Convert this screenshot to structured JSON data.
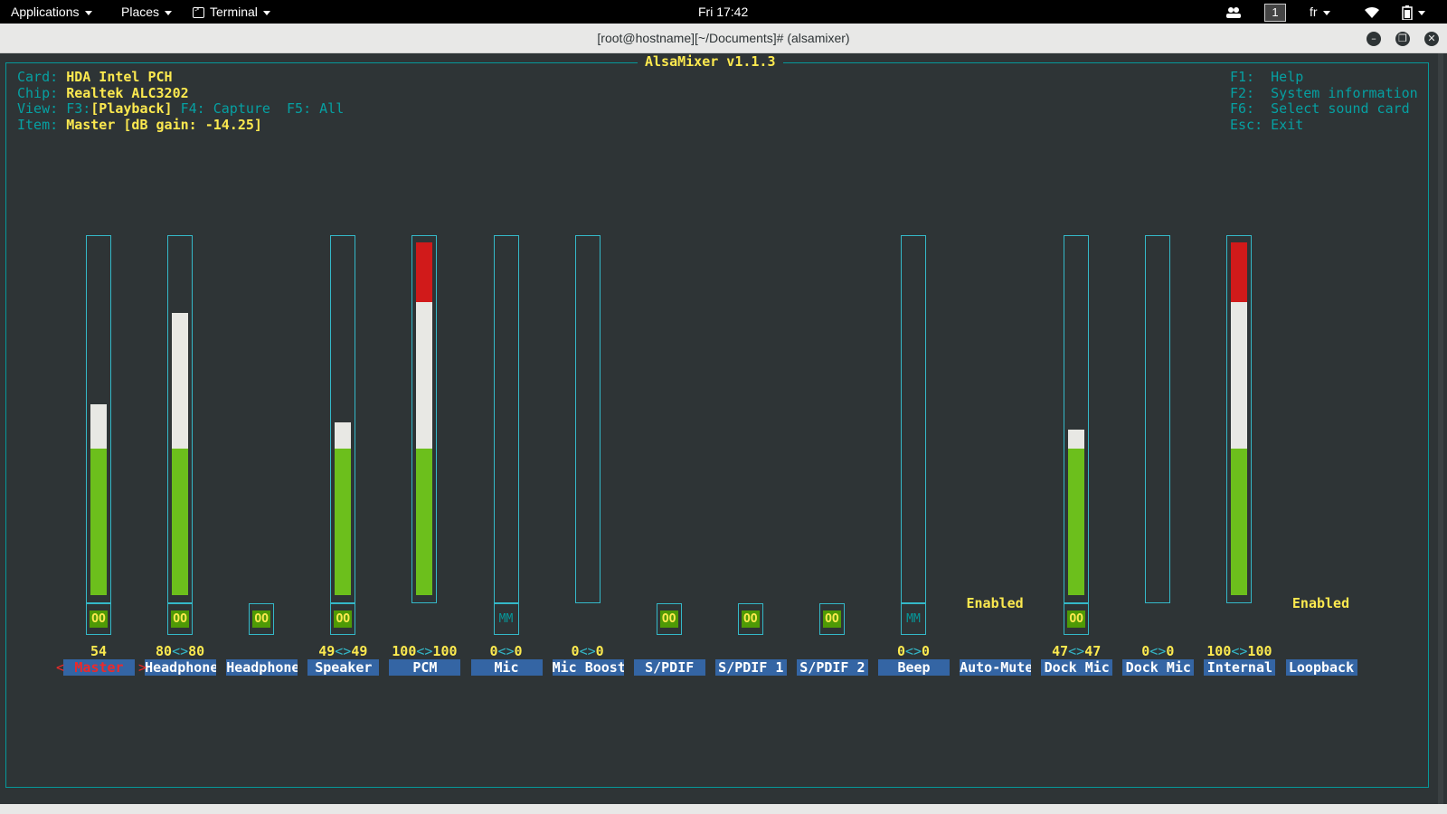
{
  "topbar": {
    "applications": "Applications",
    "places": "Places",
    "terminal": "Terminal",
    "clock": "Fri 17:42",
    "workspace": "1",
    "keyboard": "fr"
  },
  "window": {
    "title": "[root@hostname][~/Documents]# (alsamixer)"
  },
  "app": {
    "title": "AlsaMixer v1.1.3",
    "card_label": "Card:",
    "card_value": "HDA Intel PCH",
    "chip_label": "Chip:",
    "chip_value": "Realtek ALC3202",
    "view_label": "View:",
    "view_f3": "F3:",
    "view_playback": "[Playback]",
    "view_f4": "F4: Capture  F5: All",
    "item_label": "Item:",
    "item_value": "Master [dB gain: -14.25]",
    "help": [
      {
        "key": "F1:",
        "text": "Help"
      },
      {
        "key": "F2:",
        "text": "System information"
      },
      {
        "key": "F6:",
        "text": "Select sound card"
      },
      {
        "key": "Esc:",
        "text": "Exit"
      }
    ]
  },
  "controls": [
    {
      "name": "Master",
      "volume": "54",
      "level": 0.54,
      "switch": "OO",
      "selected": true
    },
    {
      "name": "Headphone",
      "volume_l": "80",
      "volume_r": "80",
      "level": 0.8,
      "switch": "OO"
    },
    {
      "name": "Headphone",
      "switch": "OO"
    },
    {
      "name": "Speaker",
      "volume_l": "49",
      "volume_r": "49",
      "level": 0.49,
      "switch": "OO"
    },
    {
      "name": "PCM",
      "volume_l": "100",
      "volume_r": "100",
      "level": 1.0
    },
    {
      "name": "Mic",
      "volume_l": "0",
      "volume_r": "0",
      "level": 0,
      "switch": "MM"
    },
    {
      "name": "Mic Boost",
      "volume_l": "0",
      "volume_r": "0",
      "level": 0
    },
    {
      "name": "S/PDIF",
      "switch": "OO"
    },
    {
      "name": "S/PDIF 1",
      "switch": "OO"
    },
    {
      "name": "S/PDIF 2",
      "switch": "OO"
    },
    {
      "name": "Beep",
      "volume_l": "0",
      "volume_r": "0",
      "level": 0,
      "switch": "MM"
    },
    {
      "name": "Auto-Mute",
      "value": "Enabled"
    },
    {
      "name": "Dock Mic",
      "volume_l": "47",
      "volume_r": "47",
      "level": 0.47,
      "switch": "OO"
    },
    {
      "name": "Dock Mic",
      "volume_l": "0",
      "volume_r": "0",
      "level": 0
    },
    {
      "name": "Internal",
      "volume_l": "100",
      "volume_r": "100",
      "level": 1.0
    },
    {
      "name": "Loopback",
      "value": "Enabled"
    }
  ],
  "colors": {
    "background": "#2e3436",
    "frame": "#06989a",
    "label_cyan": "#06a0a2",
    "value_yellow": "#fce94f",
    "name_bg": "#3465a4",
    "level_green": "#6cbf1c",
    "level_white": "#e8e8e4",
    "level_red": "#d11a1a",
    "selected_red": "#ef2929"
  }
}
